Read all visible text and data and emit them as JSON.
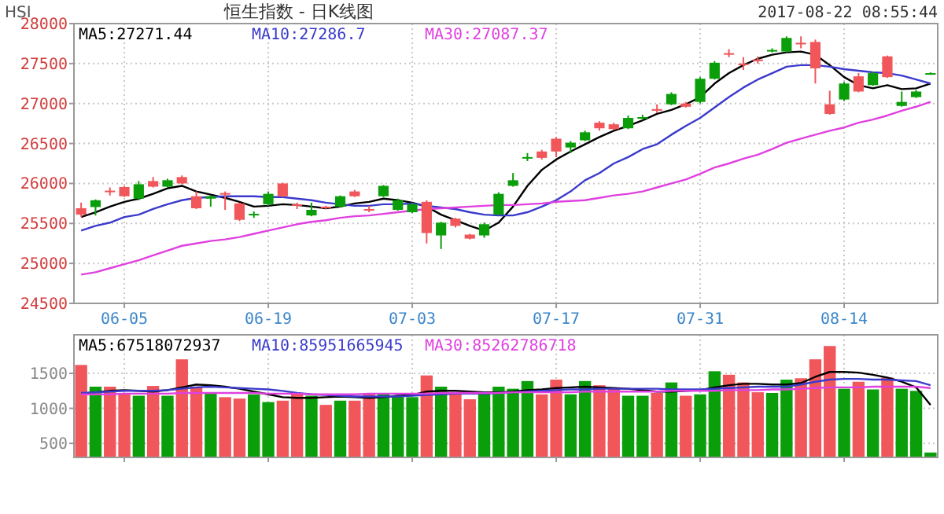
{
  "chart_data": [
    {
      "type": "candlestick",
      "title": "恒生指数 - 日K线图",
      "annotations": [
        "HSI",
        "2017-08-22 08:55:44"
      ],
      "categories": [
        null,
        null,
        null,
        "06-05",
        null,
        null,
        null,
        null,
        null,
        null,
        null,
        null,
        null,
        "06-19",
        null,
        null,
        null,
        null,
        null,
        null,
        null,
        null,
        null,
        "07-03",
        null,
        null,
        null,
        null,
        null,
        null,
        null,
        null,
        null,
        "07-17",
        null,
        null,
        null,
        null,
        null,
        null,
        null,
        null,
        null,
        "07-31",
        null,
        null,
        null,
        null,
        null,
        null,
        null,
        null,
        null,
        "08-14",
        null,
        null,
        null,
        null,
        null,
        null
      ],
      "ohlc": [
        [
          25610,
          25760,
          25580,
          25690
        ],
        [
          25790,
          25800,
          25600,
          25705
        ],
        [
          25900,
          25950,
          25850,
          25910
        ],
        [
          25840,
          25970,
          25830,
          25955
        ],
        [
          25990,
          26030,
          25790,
          25810
        ],
        [
          25960,
          26080,
          25950,
          26030
        ],
        [
          26040,
          26060,
          25950,
          25960
        ],
        [
          26000,
          26100,
          25990,
          26080
        ],
        [
          25690,
          25900,
          25680,
          25840
        ],
        [
          25840,
          25850,
          25710,
          25810
        ],
        [
          25860,
          25900,
          25670,
          25880
        ],
        [
          25545,
          25760,
          25530,
          25750
        ],
        [
          25620,
          25650,
          25570,
          25600
        ],
        [
          25870,
          25900,
          25720,
          25740
        ],
        [
          25840,
          26010,
          25830,
          26000
        ],
        [
          25720,
          25760,
          25680,
          25740
        ],
        [
          25670,
          25760,
          25590,
          25600
        ],
        [
          25690,
          25720,
          25680,
          25710
        ],
        [
          25840,
          25850,
          25700,
          25710
        ],
        [
          25840,
          25920,
          25830,
          25900
        ],
        [
          25660,
          25720,
          25640,
          25680
        ],
        [
          25970,
          25980,
          25830,
          25840
        ],
        [
          25790,
          25810,
          25660,
          25670
        ],
        [
          25740,
          25760,
          25630,
          25640
        ],
        [
          25380,
          25790,
          25250,
          25770
        ],
        [
          25510,
          25520,
          25180,
          25350
        ],
        [
          25470,
          25570,
          25450,
          25560
        ],
        [
          25310,
          25370,
          25300,
          25360
        ],
        [
          25490,
          25510,
          25320,
          25350
        ],
        [
          25870,
          25890,
          25600,
          25610
        ],
        [
          26040,
          26130,
          25960,
          25970
        ],
        [
          26330,
          26380,
          26280,
          26320
        ],
        [
          26320,
          26420,
          26300,
          26400
        ],
        [
          26400,
          26580,
          26330,
          26560
        ],
        [
          26510,
          26530,
          26380,
          26450
        ],
        [
          26640,
          26660,
          26530,
          26540
        ],
        [
          26690,
          26780,
          26660,
          26760
        ],
        [
          26680,
          26760,
          26670,
          26740
        ],
        [
          26820,
          26850,
          26680,
          26690
        ],
        [
          26830,
          26860,
          26790,
          26810
        ],
        [
          26910,
          26990,
          26880,
          26930
        ],
        [
          27120,
          27140,
          26980,
          26990
        ],
        [
          26960,
          27020,
          26950,
          27000
        ],
        [
          27310,
          27330,
          27000,
          27020
        ],
        [
          27510,
          27530,
          27300,
          27310
        ],
        [
          27610,
          27680,
          27580,
          27630
        ],
        [
          27490,
          27580,
          27420,
          27500
        ],
        [
          27530,
          27590,
          27500,
          27550
        ],
        [
          27670,
          27690,
          27640,
          27650
        ],
        [
          27820,
          27840,
          27640,
          27650
        ],
        [
          27740,
          27840,
          27690,
          27760
        ],
        [
          27440,
          27800,
          27250,
          27770
        ],
        [
          26870,
          27160,
          26860,
          26990
        ],
        [
          27250,
          27270,
          27030,
          27050
        ],
        [
          27150,
          27380,
          27140,
          27340
        ],
        [
          27380,
          27400,
          27220,
          27230
        ],
        [
          27330,
          27600,
          27320,
          27590
        ],
        [
          27020,
          27150,
          26960,
          26970
        ],
        [
          27150,
          27170,
          27070,
          27080
        ],
        [
          27380,
          27390,
          27360,
          27370
        ]
      ],
      "colors": [
        "#f0565a",
        "#0a9e0a",
        "#f0565a",
        "#f0565a",
        "#0a9e0a",
        "#f0565a",
        "#0a9e0a",
        "#f0565a",
        "#f0565a",
        "#0a9e0a",
        "#f0565a",
        "#f0565a",
        "#0a9e0a",
        "#0a9e0a",
        "#f0565a",
        "#f0565a",
        "#0a9e0a",
        "#f0565a",
        "#0a9e0a",
        "#f0565a",
        "#f0565a",
        "#0a9e0a",
        "#0a9e0a",
        "#0a9e0a",
        "#f0565a",
        "#0a9e0a",
        "#f0565a",
        "#f0565a",
        "#0a9e0a",
        "#0a9e0a",
        "#0a9e0a",
        "#0a9e0a",
        "#f0565a",
        "#f0565a",
        "#0a9e0a",
        "#0a9e0a",
        "#f0565a",
        "#f0565a",
        "#0a9e0a",
        "#0a9e0a",
        "#f0565a",
        "#0a9e0a",
        "#f0565a",
        "#0a9e0a",
        "#0a9e0a",
        "#f0565a",
        "#f0565a",
        "#f0565a",
        "#0a9e0a",
        "#0a9e0a",
        "#f0565a",
        "#f0565a",
        "#f0565a",
        "#0a9e0a",
        "#f0565a",
        "#0a9e0a",
        "#f0565a",
        "#0a9e0a",
        "#0a9e0a",
        "#0a9e0a"
      ],
      "series": [
        {
          "name": "MA5:27271.44",
          "type": "line",
          "color": "#000000",
          "values": [
            25580,
            25640,
            25710,
            25770,
            25810,
            25870,
            25940,
            25970,
            25900,
            25860,
            25820,
            25770,
            25710,
            25720,
            25740,
            25730,
            25710,
            25690,
            25710,
            25750,
            25770,
            25810,
            25790,
            25760,
            25710,
            25610,
            25540,
            25470,
            25410,
            25510,
            25710,
            25970,
            26170,
            26300,
            26400,
            26490,
            26580,
            26660,
            26720,
            26790,
            26870,
            26920,
            26990,
            27080,
            27250,
            27380,
            27480,
            27560,
            27610,
            27640,
            27650,
            27610,
            27480,
            27330,
            27230,
            27190,
            27230,
            27180,
            27190,
            27250
          ]
        },
        {
          "name": "MA10:27286.7",
          "type": "line",
          "color": "#3a3acc",
          "values": [
            25410,
            25470,
            25510,
            25580,
            25610,
            25680,
            25740,
            25790,
            25820,
            25830,
            25840,
            25840,
            25840,
            25830,
            25830,
            25810,
            25790,
            25760,
            25740,
            25720,
            25720,
            25740,
            25740,
            25750,
            25720,
            25700,
            25680,
            25640,
            25610,
            25600,
            25600,
            25640,
            25710,
            25790,
            25900,
            26040,
            26130,
            26250,
            26330,
            26430,
            26490,
            26610,
            26720,
            26820,
            26950,
            27080,
            27200,
            27300,
            27380,
            27460,
            27480,
            27480,
            27460,
            27430,
            27410,
            27390,
            27380,
            27350,
            27300,
            27250
          ]
        },
        {
          "name": "MA30:27087.37",
          "type": "line",
          "color": "#e040e0",
          "values": [
            24860,
            24890,
            24940,
            24990,
            25040,
            25100,
            25160,
            25220,
            25250,
            25280,
            25300,
            25330,
            25370,
            25410,
            25450,
            25490,
            25520,
            25540,
            25570,
            25590,
            25600,
            25620,
            25640,
            25660,
            25680,
            25690,
            25700,
            25710,
            25720,
            25730,
            25730,
            25740,
            25750,
            25770,
            25780,
            25790,
            25820,
            25850,
            25870,
            25900,
            25950,
            26000,
            26050,
            26120,
            26200,
            26250,
            26310,
            26360,
            26430,
            26510,
            26560,
            26610,
            26660,
            26700,
            26760,
            26800,
            26850,
            26910,
            26960,
            27020
          ]
        }
      ],
      "ylim": [
        24500,
        28000
      ],
      "yticks": [
        24500,
        25000,
        25500,
        26000,
        26500,
        27000,
        27500,
        28000
      ],
      "grid": true,
      "legend": "top left"
    },
    {
      "type": "bar",
      "categories": [
        null,
        null,
        null,
        null,
        null,
        null,
        null,
        null,
        null,
        null,
        null,
        null,
        null,
        null,
        null,
        null,
        null,
        null,
        null,
        null,
        null,
        null,
        null,
        null,
        null,
        null,
        null,
        null,
        null,
        null,
        null,
        null,
        null,
        null,
        null,
        null,
        null,
        null,
        null,
        null,
        null,
        null,
        null,
        null,
        null,
        null,
        null,
        null,
        null,
        null,
        null,
        null,
        null,
        null,
        null,
        null,
        null,
        null,
        null,
        null
      ],
      "values": [
        1620,
        1310,
        1310,
        1200,
        1180,
        1320,
        1180,
        1700,
        1310,
        1220,
        1160,
        1140,
        1200,
        1090,
        1110,
        1220,
        1180,
        1050,
        1110,
        1110,
        1220,
        1200,
        1180,
        1160,
        1470,
        1310,
        1220,
        1130,
        1230,
        1310,
        1280,
        1390,
        1200,
        1410,
        1200,
        1390,
        1330,
        1290,
        1180,
        1180,
        1220,
        1370,
        1180,
        1200,
        1530,
        1480,
        1370,
        1230,
        1220,
        1410,
        1430,
        1700,
        1890,
        1280,
        1380,
        1270,
        1440,
        1280,
        1250,
        370
      ],
      "colors": [
        "#f0565a",
        "#0a9e0a",
        "#f0565a",
        "#f0565a",
        "#0a9e0a",
        "#f0565a",
        "#0a9e0a",
        "#f0565a",
        "#f0565a",
        "#0a9e0a",
        "#f0565a",
        "#f0565a",
        "#0a9e0a",
        "#0a9e0a",
        "#f0565a",
        "#f0565a",
        "#0a9e0a",
        "#f0565a",
        "#0a9e0a",
        "#f0565a",
        "#f0565a",
        "#0a9e0a",
        "#0a9e0a",
        "#0a9e0a",
        "#f0565a",
        "#0a9e0a",
        "#f0565a",
        "#f0565a",
        "#0a9e0a",
        "#0a9e0a",
        "#0a9e0a",
        "#0a9e0a",
        "#f0565a",
        "#f0565a",
        "#0a9e0a",
        "#0a9e0a",
        "#f0565a",
        "#f0565a",
        "#0a9e0a",
        "#0a9e0a",
        "#f0565a",
        "#0a9e0a",
        "#f0565a",
        "#0a9e0a",
        "#0a9e0a",
        "#f0565a",
        "#f0565a",
        "#f0565a",
        "#0a9e0a",
        "#0a9e0a",
        "#f0565a",
        "#f0565a",
        "#f0565a",
        "#0a9e0a",
        "#f0565a",
        "#0a9e0a",
        "#f0565a",
        "#0a9e0a",
        "#0a9e0a",
        "#0a9e0a"
      ],
      "series": [
        {
          "name": "MA5:67518072937",
          "type": "line",
          "color": "#000000",
          "values": [
            1210,
            1230,
            1250,
            1260,
            1250,
            1240,
            1260,
            1300,
            1340,
            1330,
            1310,
            1280,
            1240,
            1200,
            1160,
            1150,
            1150,
            1160,
            1170,
            1160,
            1150,
            1160,
            1180,
            1190,
            1240,
            1250,
            1250,
            1240,
            1230,
            1230,
            1240,
            1260,
            1270,
            1290,
            1300,
            1310,
            1300,
            1290,
            1280,
            1260,
            1240,
            1240,
            1250,
            1260,
            1300,
            1330,
            1350,
            1350,
            1340,
            1340,
            1360,
            1450,
            1520,
            1520,
            1510,
            1480,
            1440,
            1380,
            1300,
            1050
          ]
        },
        {
          "name": "MA10:85951665945",
          "type": "line",
          "color": "#3a3acc",
          "values": [
            1220,
            1230,
            1240,
            1250,
            1250,
            1250,
            1260,
            1280,
            1300,
            1310,
            1300,
            1290,
            1280,
            1270,
            1250,
            1220,
            1200,
            1190,
            1180,
            1170,
            1170,
            1170,
            1170,
            1180,
            1190,
            1200,
            1210,
            1210,
            1210,
            1220,
            1230,
            1240,
            1250,
            1260,
            1270,
            1270,
            1280,
            1280,
            1280,
            1280,
            1280,
            1270,
            1270,
            1270,
            1280,
            1290,
            1300,
            1310,
            1310,
            1310,
            1340,
            1380,
            1410,
            1420,
            1420,
            1410,
            1410,
            1400,
            1390,
            1330
          ]
        },
        {
          "name": "MA30:85262786718",
          "type": "line",
          "color": "#e040e0",
          "values": [
            1200,
            1200,
            1200,
            1210,
            1210,
            1210,
            1210,
            1220,
            1220,
            1220,
            1220,
            1220,
            1220,
            1210,
            1210,
            1210,
            1200,
            1200,
            1200,
            1200,
            1210,
            1210,
            1210,
            1210,
            1210,
            1220,
            1220,
            1220,
            1220,
            1220,
            1230,
            1230,
            1230,
            1230,
            1230,
            1240,
            1240,
            1240,
            1240,
            1240,
            1240,
            1250,
            1250,
            1250,
            1250,
            1260,
            1260,
            1260,
            1270,
            1270,
            1280,
            1290,
            1300,
            1300,
            1300,
            1310,
            1310,
            1310,
            1310,
            1290
          ]
        }
      ],
      "ylim": [
        300,
        2050
      ],
      "yticks": [
        500,
        1000,
        1500
      ],
      "tick_labels": "y",
      "grid": true,
      "legend": "top left"
    }
  ]
}
